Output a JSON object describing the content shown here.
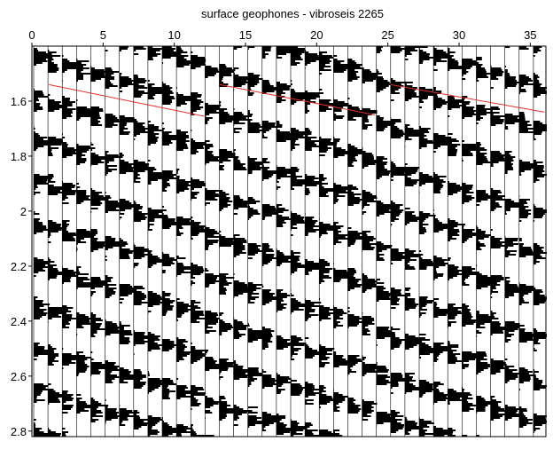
{
  "chart_data": {
    "type": "seismic",
    "title": "surface geophones - vibroseis  2265",
    "xlim": [
      0,
      36.1
    ],
    "xticks": [
      0,
      5,
      10,
      15,
      20,
      25,
      30,
      35
    ],
    "ylim": [
      1.4,
      2.82
    ],
    "yticks": [
      1.6,
      1.8,
      2,
      2.2,
      2.4,
      2.6,
      2.8
    ],
    "y_inverted": true,
    "picks": [
      {
        "color": "#e03030",
        "x": [
          1.2,
          12.1
        ],
        "values": [
          1.54,
          1.655
        ]
      },
      {
        "color": "#e03030",
        "x": [
          13.2,
          24.1
        ],
        "values": [
          1.54,
          1.65
        ]
      },
      {
        "color": "#e03030",
        "x": [
          25.2,
          36.0
        ],
        "values": [
          1.54,
          1.64
        ]
      }
    ]
  }
}
